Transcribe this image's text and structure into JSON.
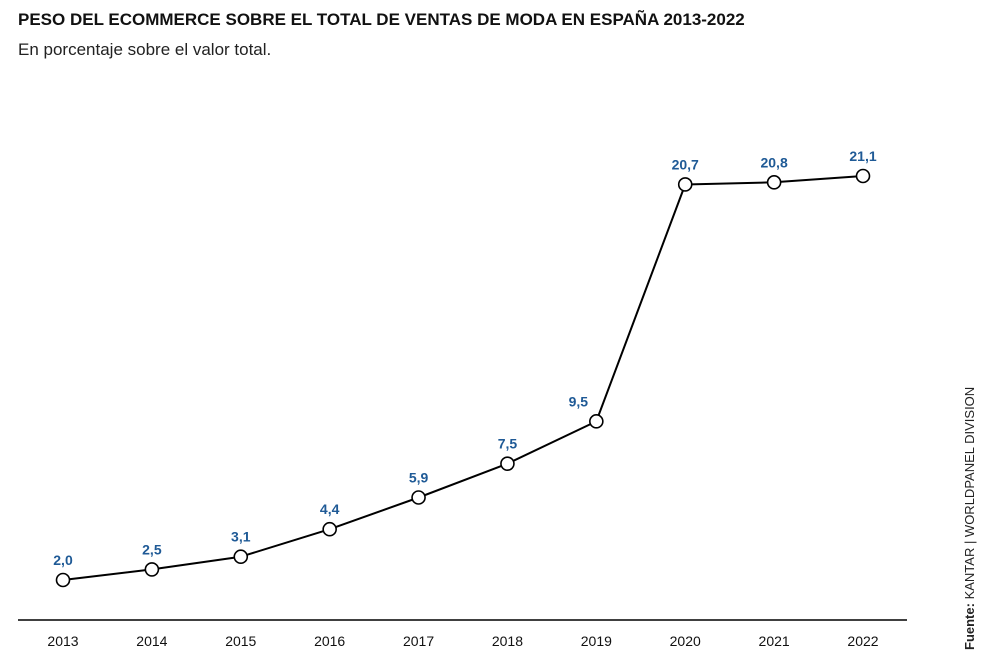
{
  "chart_data": {
    "type": "line",
    "title": "PESO DEL ECOMMERCE SOBRE EL TOTAL DE VENTAS DE MODA EN ESPAÑA 2013-2022",
    "subtitle": "En porcentaje sobre el valor total.",
    "xlabel": "",
    "ylabel": "",
    "categories": [
      "2013",
      "2014",
      "2015",
      "2016",
      "2017",
      "2018",
      "2019",
      "2020",
      "2021",
      "2022"
    ],
    "series": [
      {
        "values": [
          2.0,
          2.5,
          3.1,
          4.4,
          5.9,
          7.5,
          9.5,
          20.7,
          20.8,
          21.1
        ],
        "labels": [
          "2,0",
          "2,5",
          "3,1",
          "4,4",
          "5,9",
          "7,5",
          "9,5",
          "20,7",
          "20,8",
          "21,1"
        ]
      }
    ],
    "ylim": [
      0,
      25
    ],
    "grid": false,
    "legend": "none",
    "colors": {
      "line": "#000000",
      "marker_fill": "#ffffff",
      "data_label": "#1f5a96",
      "axis": "#000000"
    }
  },
  "source": {
    "label": "Fuente:",
    "text": " KANTAR | WORLDPANEL DIVISION"
  }
}
